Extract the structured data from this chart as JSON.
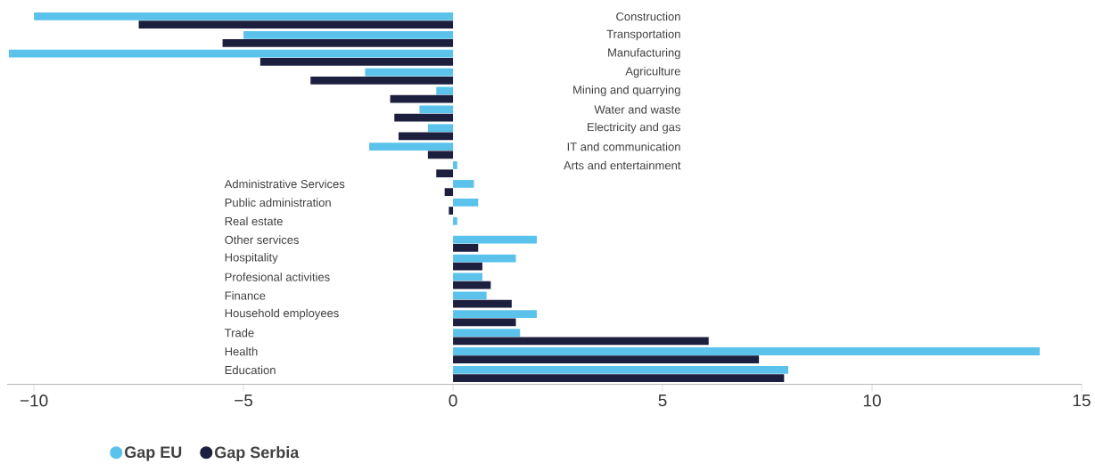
{
  "chart_data": {
    "type": "bar",
    "orientation": "horizontal",
    "categories": [
      "Construction",
      "Transportation",
      "Manufacturing",
      "Agriculture",
      "Mining and quarrying",
      "Water and waste",
      "Electricity and gas",
      "IT and communication",
      "Arts and entertainment",
      "Administrative Services",
      "Public administration",
      "Real estate",
      "Other services",
      "Hospitality",
      "Profesional activities",
      "Finance",
      "Household employees",
      "Trade",
      "Health",
      "Education"
    ],
    "series": [
      {
        "name": "Gap EU",
        "color": "#5bc2eb",
        "values": [
          -10.0,
          -5.0,
          -10.6,
          -2.1,
          -0.4,
          -0.8,
          -0.6,
          -2.0,
          0.1,
          0.5,
          0.6,
          0.1,
          2.0,
          1.5,
          0.7,
          0.8,
          2.0,
          1.6,
          14.0,
          8.0
        ]
      },
      {
        "name": "Gap Serbia",
        "color": "#1c1f3d",
        "values": [
          -7.5,
          -5.5,
          -4.6,
          -3.4,
          -1.5,
          -1.4,
          -1.3,
          -0.6,
          -0.4,
          -0.2,
          -0.1,
          0,
          0.6,
          0.7,
          0.9,
          1.4,
          1.5,
          6.1,
          7.3,
          7.9
        ]
      }
    ],
    "xlim": [
      -10.64,
      15.0
    ],
    "xticks": [
      {
        "value": -10,
        "label": "−10"
      },
      {
        "value": -5,
        "label": "−5"
      },
      {
        "value": 0,
        "label": "0"
      },
      {
        "value": 5,
        "label": "5"
      },
      {
        "value": 10,
        "label": "10"
      },
      {
        "value": 15,
        "label": "15"
      }
    ],
    "legend": "bottom left"
  }
}
